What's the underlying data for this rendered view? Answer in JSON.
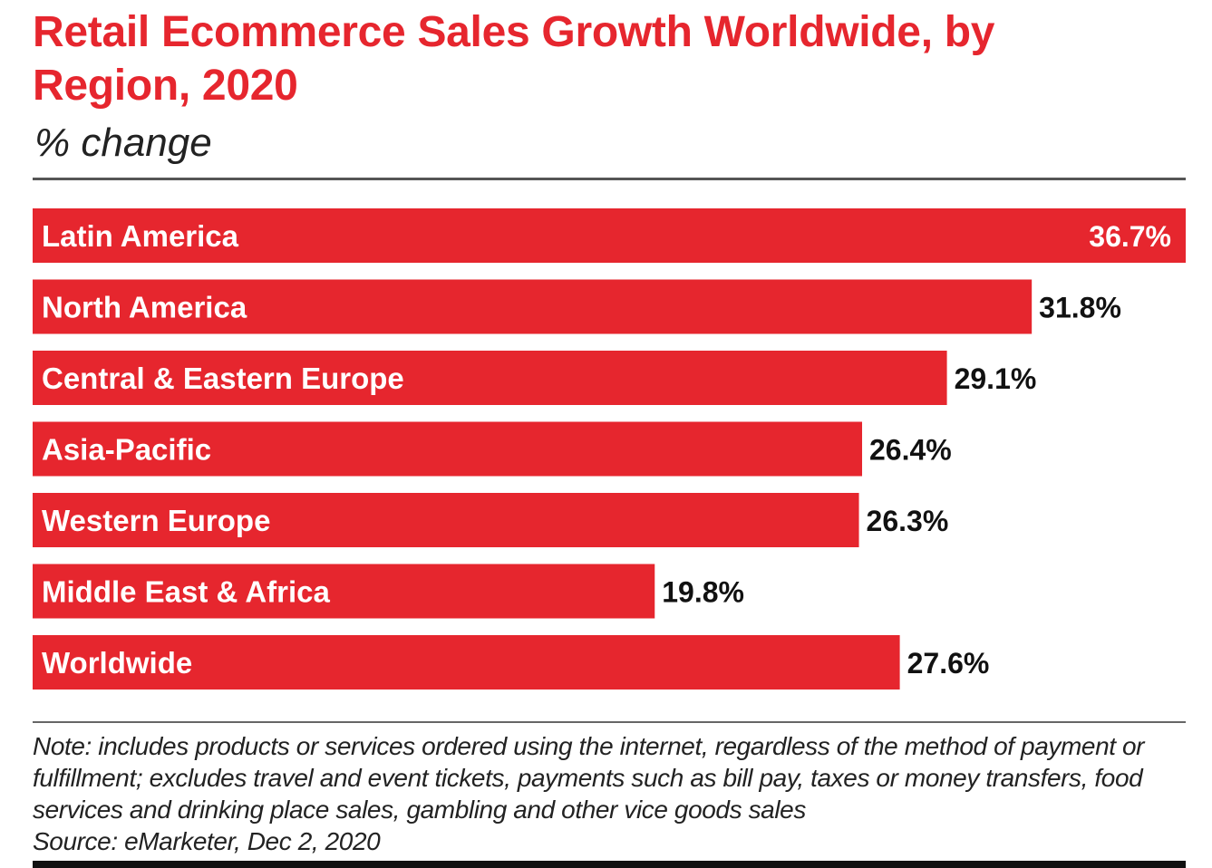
{
  "chart_data": {
    "type": "bar",
    "orientation": "horizontal",
    "title": "Retail Ecommerce Sales Growth Worldwide, by Region, 2020",
    "subtitle": "% change",
    "categories": [
      "Latin America",
      "North America",
      "Central & Eastern Europe",
      "Asia-Pacific",
      "Western Europe",
      "Middle East & Africa",
      "Worldwide"
    ],
    "values": [
      36.7,
      31.8,
      29.1,
      26.4,
      26.3,
      19.8,
      27.6
    ],
    "value_labels": [
      "36.7%",
      "31.8%",
      "29.1%",
      "26.4%",
      "26.3%",
      "19.8%",
      "27.6%"
    ],
    "xlim": [
      0,
      36.7
    ],
    "grid": false,
    "bar_color": "#e6262e",
    "note": "Note: includes products or services ordered using the internet, regardless of the method of payment or fulfillment; excludes travel and event tickets, payments such as bill pay, taxes or money transfers, food services and drinking place sales, gambling and other vice goods sales",
    "source": "Source: eMarketer, Dec 2, 2020"
  }
}
